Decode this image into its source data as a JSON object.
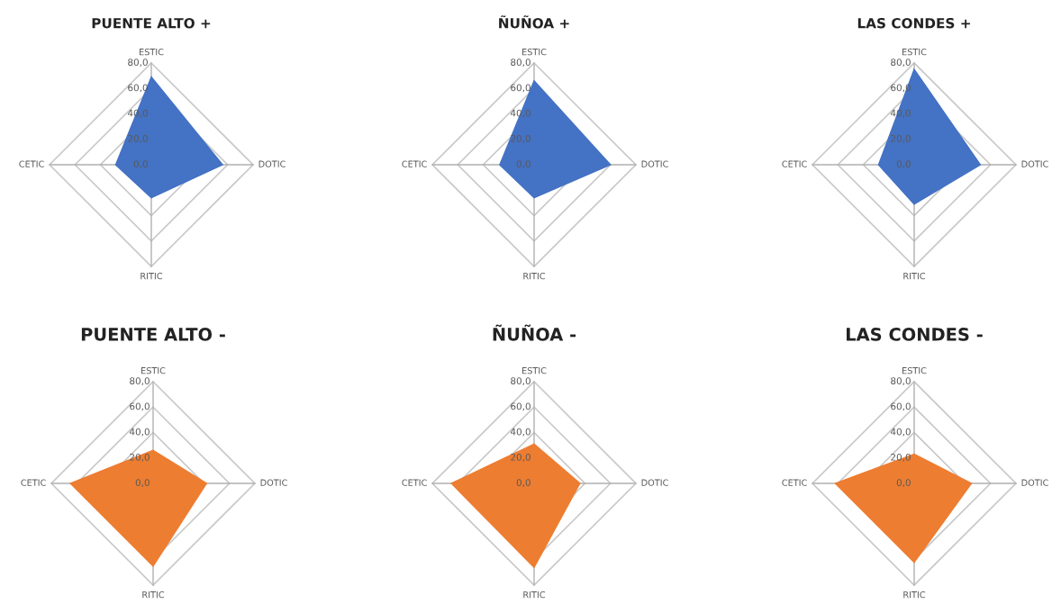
{
  "chart_data": [
    {
      "type": "radar",
      "title": "PUENTE ALTO +",
      "categories": [
        "ESTIC",
        "DOTIC",
        "RITIC",
        "CETIC"
      ],
      "ylim": [
        0,
        80
      ],
      "yticks": [
        {
          "value": 0,
          "label": "0,0"
        },
        {
          "value": 20,
          "label": "20,0"
        },
        {
          "value": 40,
          "label": "40,0"
        },
        {
          "value": 60,
          "label": "60,0"
        },
        {
          "value": 80,
          "label": "80,0"
        }
      ],
      "grid": true,
      "series": [
        {
          "color": "#4472c4",
          "values": [
            69,
            56,
            26,
            28
          ]
        }
      ]
    },
    {
      "type": "radar",
      "title": "ÑUÑOA +",
      "categories": [
        "ESTIC",
        "DOTIC",
        "RITIC",
        "CETIC"
      ],
      "ylim": [
        0,
        80
      ],
      "yticks": [
        {
          "value": 0,
          "label": "0,0"
        },
        {
          "value": 20,
          "label": "20,0"
        },
        {
          "value": 40,
          "label": "40,0"
        },
        {
          "value": 60,
          "label": "60,0"
        },
        {
          "value": 80,
          "label": "80,0"
        }
      ],
      "grid": true,
      "series": [
        {
          "color": "#4472c4",
          "values": [
            66,
            60,
            26,
            27
          ]
        }
      ]
    },
    {
      "type": "radar",
      "title": "LAS CONDES +",
      "categories": [
        "ESTIC",
        "DOTIC",
        "RITIC",
        "CETIC"
      ],
      "ylim": [
        0,
        80
      ],
      "yticks": [
        {
          "value": 0,
          "label": "0,0"
        },
        {
          "value": 20,
          "label": "20,0"
        },
        {
          "value": 40,
          "label": "40,0"
        },
        {
          "value": 60,
          "label": "60,0"
        },
        {
          "value": 80,
          "label": "80,0"
        }
      ],
      "grid": true,
      "series": [
        {
          "color": "#4472c4",
          "values": [
            75,
            52,
            31,
            28
          ]
        }
      ]
    },
    {
      "type": "radar",
      "title": "PUENTE ALTO -",
      "categories": [
        "ESTIC",
        "DOTIC",
        "RITIC",
        "CETIC"
      ],
      "ylim": [
        0,
        80
      ],
      "yticks": [
        {
          "value": 0,
          "label": "0,0"
        },
        {
          "value": 20,
          "label": "20,0"
        },
        {
          "value": 40,
          "label": "40,0"
        },
        {
          "value": 60,
          "label": "60,0"
        },
        {
          "value": 80,
          "label": "80,0"
        }
      ],
      "grid": true,
      "series": [
        {
          "color": "#ed7d31",
          "values": [
            26,
            42,
            65,
            65
          ]
        }
      ]
    },
    {
      "type": "radar",
      "title": "ÑUÑOA -",
      "categories": [
        "ESTIC",
        "DOTIC",
        "RITIC",
        "CETIC"
      ],
      "ylim": [
        0,
        80
      ],
      "yticks": [
        {
          "value": 0,
          "label": "0,0"
        },
        {
          "value": 20,
          "label": "20,0"
        },
        {
          "value": 40,
          "label": "40,0"
        },
        {
          "value": 60,
          "label": "60,0"
        },
        {
          "value": 80,
          "label": "80,0"
        }
      ],
      "grid": true,
      "series": [
        {
          "color": "#ed7d31",
          "values": [
            31,
            36,
            66,
            65
          ]
        }
      ]
    },
    {
      "type": "radar",
      "title": "LAS CONDES -",
      "categories": [
        "ESTIC",
        "DOTIC",
        "RITIC",
        "CETIC"
      ],
      "ylim": [
        0,
        80
      ],
      "yticks": [
        {
          "value": 0,
          "label": "0,0"
        },
        {
          "value": 20,
          "label": "20,0"
        },
        {
          "value": 40,
          "label": "40,0"
        },
        {
          "value": 60,
          "label": "60,0"
        },
        {
          "value": 80,
          "label": "80,0"
        }
      ],
      "grid": true,
      "series": [
        {
          "color": "#ed7d31",
          "values": [
            23,
            45,
            62,
            62
          ]
        }
      ]
    }
  ]
}
